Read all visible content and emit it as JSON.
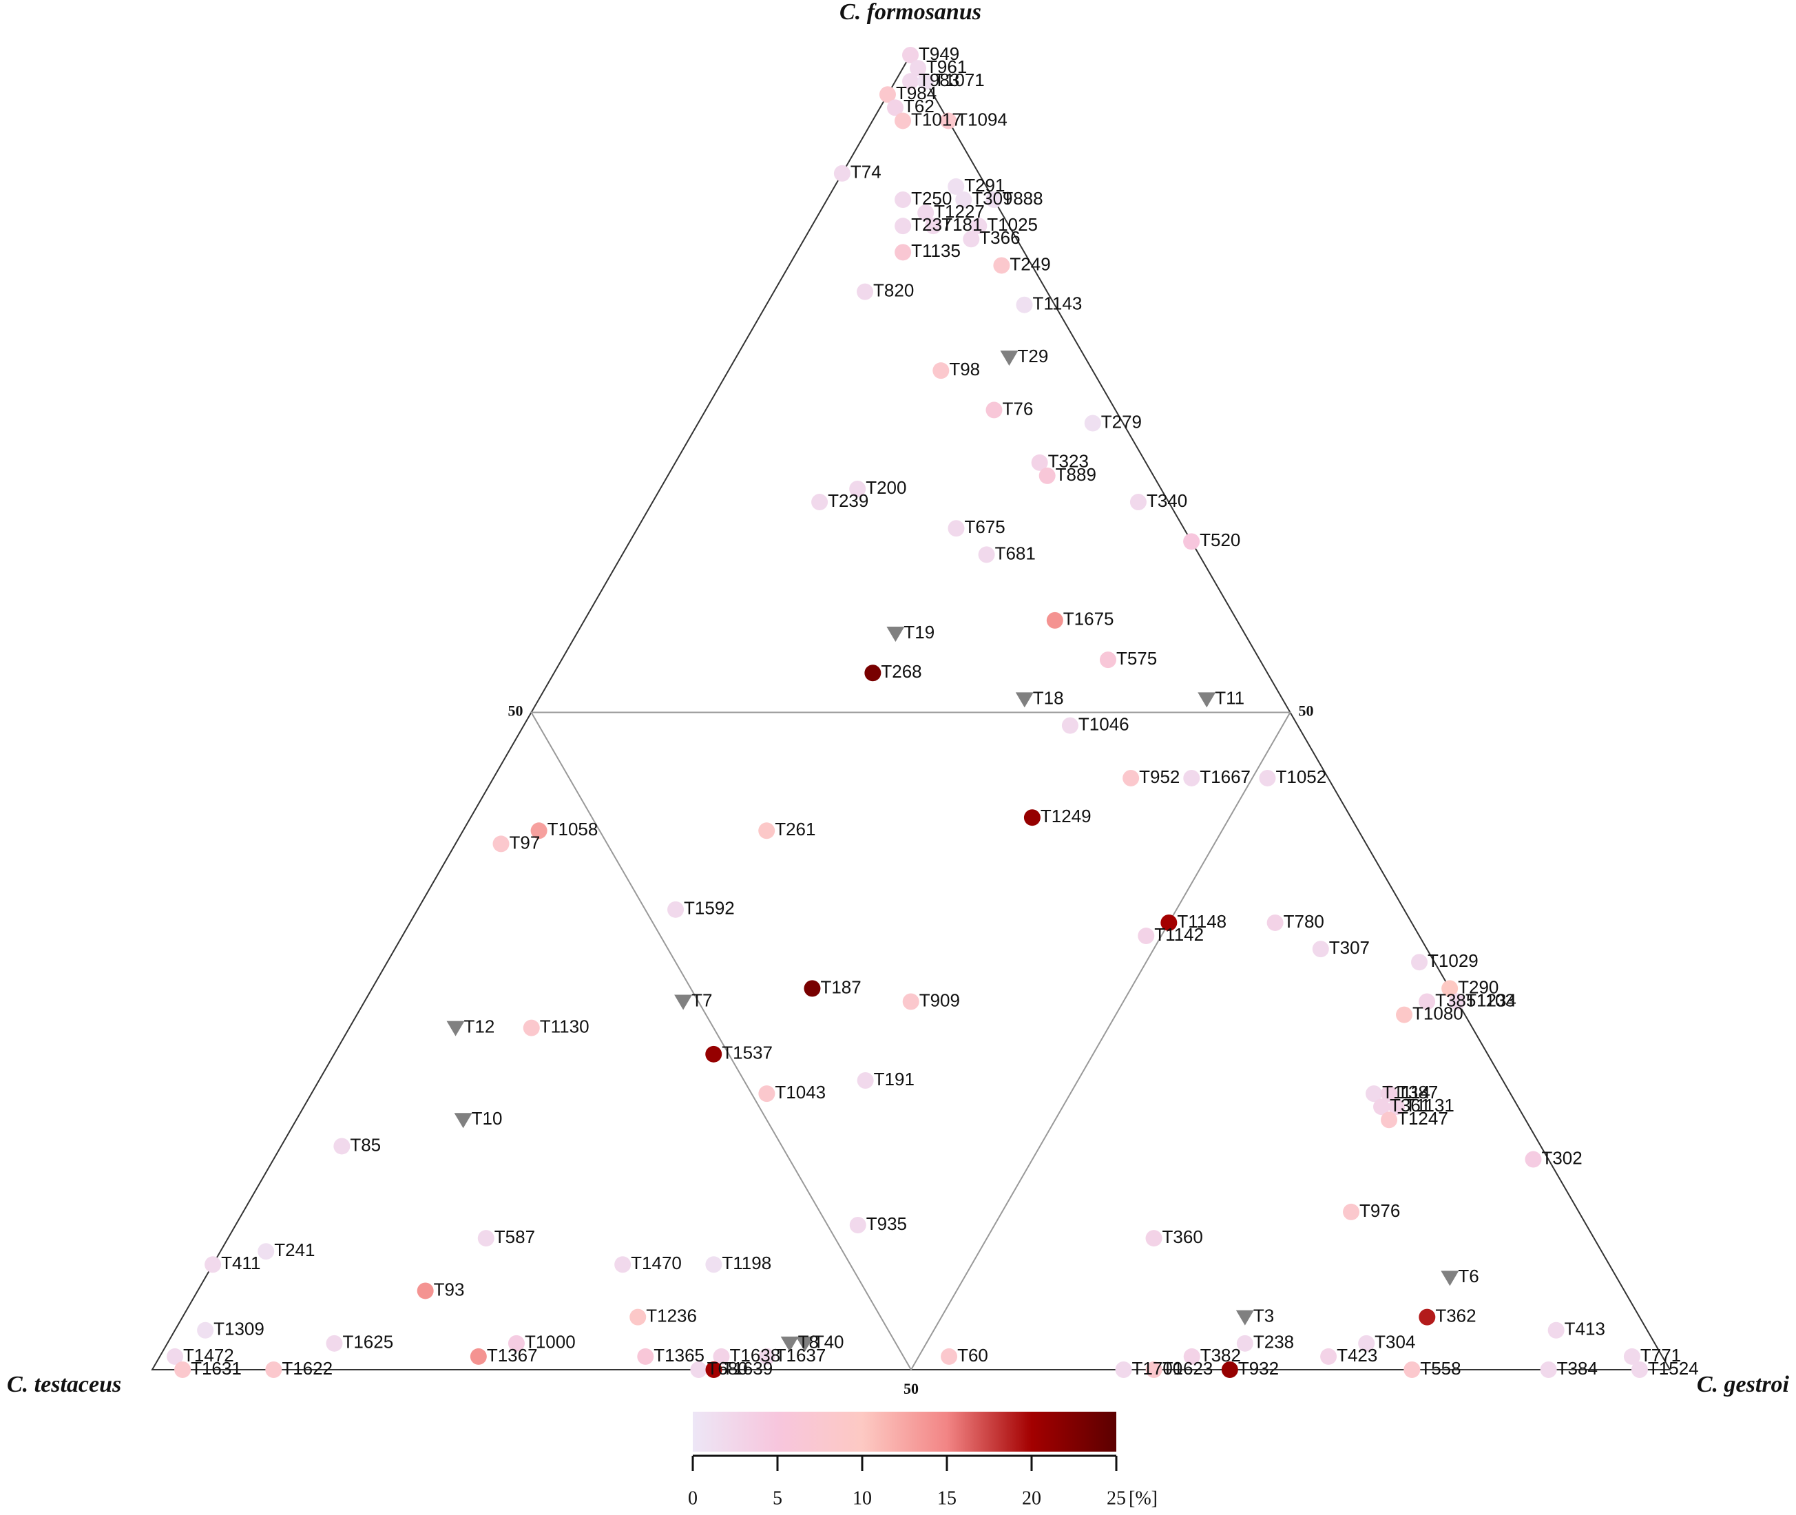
{
  "chart_data": {
    "type": "ternary",
    "axes": [
      "C. formosanus",
      "C. testaceus",
      "C. gestroi"
    ],
    "ticks": [
      50
    ],
    "colorbar": {
      "lim": [
        0,
        25
      ],
      "ticks": [
        0,
        5,
        10,
        15,
        20,
        25
      ],
      "unit": "[%]",
      "colors": [
        "#ede6f6",
        "#f7c6dd",
        "#fdc9c3",
        "#f28585",
        "#a30000",
        "#5c0000"
      ]
    },
    "missing_color": "#808080",
    "points": {
      "labels": [
        "T949",
        "T961",
        "T983",
        "T1071",
        "T984",
        "T62",
        "T1017",
        "T1094",
        "T74",
        "T250",
        "T309",
        "T291",
        "T888",
        "T1227",
        "T1025",
        "T237",
        "T181",
        "T366",
        "T1135",
        "T249",
        "T820",
        "T1143",
        "T29",
        "T98",
        "T76",
        "T279",
        "T323",
        "T889",
        "T200",
        "T239",
        "T340",
        "T520",
        "T675",
        "T681",
        "T1675",
        "T19",
        "T575",
        "T268",
        "T18",
        "T11",
        "T1046",
        "T952",
        "T1667",
        "T1052",
        "T1249",
        "T97",
        "T1058",
        "T261",
        "T1592",
        "T1142",
        "T1148",
        "T780",
        "T307",
        "T1029",
        "T290",
        "T385",
        "T1234",
        "T1080",
        "T1103",
        "T187",
        "T909",
        "T7",
        "T12",
        "T1130",
        "T1537",
        "T1043",
        "T191",
        "T1114",
        "T387",
        "T361",
        "T1131",
        "T1247",
        "T10",
        "T85",
        "T302",
        "T976",
        "T935",
        "T360",
        "T241",
        "T587",
        "T411",
        "T1470",
        "T1198",
        "T6",
        "T93",
        "T362",
        "T1236",
        "T3",
        "T413",
        "T1309",
        "T238",
        "T1472",
        "T1000",
        "T1625",
        "T1622",
        "T1631",
        "T1367",
        "T1365",
        "T1638",
        "T8",
        "T40",
        "T680",
        "T1639",
        "T1637",
        "T60",
        "T1700",
        "T1623",
        "T382",
        "T932",
        "T304",
        "T423",
        "T558",
        "T384",
        "T771",
        "T1524"
      ],
      "formosanus": [
        100,
        99,
        98,
        98,
        97,
        96,
        95,
        95,
        91,
        89,
        89,
        90,
        89,
        88,
        87,
        87,
        87,
        86,
        85,
        84,
        82,
        81,
        77,
        76,
        73,
        72,
        69,
        68,
        67,
        66,
        66,
        63,
        64,
        62,
        57,
        56,
        54,
        53,
        51,
        51,
        49,
        45,
        45,
        45,
        42,
        40,
        41,
        41,
        35,
        33,
        34,
        34,
        32,
        31,
        29,
        28,
        28,
        27,
        28,
        29,
        28,
        28,
        26,
        26,
        24,
        21,
        22,
        21,
        21,
        20,
        20,
        19,
        19,
        17,
        16,
        12,
        11,
        10,
        9,
        10,
        8,
        8,
        8,
        7,
        6,
        4,
        4,
        4,
        3,
        3,
        2,
        1,
        2,
        2,
        0,
        0,
        1,
        1,
        1,
        2,
        2,
        0,
        0,
        1,
        1,
        0,
        0,
        1,
        0,
        2,
        1,
        0,
        0,
        1,
        0
      ],
      "testaceus": [
        0,
        0,
        1,
        0,
        3,
        3,
        3,
        0,
        9,
        6,
        2,
        2,
        0,
        5,
        2,
        7,
        5,
        3,
        8,
        2,
        12,
        2,
        5,
        10,
        8,
        2,
        7,
        7,
        20,
        23,
        2,
        0,
        15,
        14,
        12,
        23,
        10,
        26,
        17,
        5,
        15,
        13,
        9,
        4,
        21,
        57,
        54,
        39,
        48,
        18,
        16,
        9,
        7,
        1,
        0,
        2,
        0,
        4,
        0,
        42,
        36,
        51,
        67,
        62,
        51,
        49,
        42,
        9,
        8,
        9,
        8,
        9,
        70,
        79,
        1,
        15,
        48,
        29,
        88,
        73,
        92,
        65,
        59,
        11,
        79,
        14,
        66,
        26,
        6,
        95,
        27,
        98,
        75,
        87,
        92,
        98,
        78,
        67,
        62,
        57,
        56,
        64,
        63,
        59,
        47,
        36,
        34,
        31,
        29,
        19,
        22,
        17,
        8,
        2,
        2
      ],
      "gestroi": [
        0,
        1,
        1,
        2,
        0,
        1,
        2,
        5,
        0,
        5,
        9,
        8,
        11,
        7,
        11,
        6,
        8,
        11,
        7,
        14,
        6,
        17,
        18,
        14,
        19,
        26,
        24,
        25,
        13,
        11,
        32,
        37,
        21,
        24,
        31,
        21,
        36,
        21,
        32,
        44,
        36,
        42,
        46,
        51,
        37,
        3,
        5,
        20,
        17,
        49,
        50,
        57,
        61,
        68,
        71,
        70,
        72,
        69,
        72,
        29,
        36,
        21,
        7,
        12,
        25,
        30,
        36,
        70,
        71,
        71,
        72,
        72,
        11,
        4,
        83,
        73,
        41,
        61,
        3,
        17,
        0,
        27,
        33,
        82,
        15,
        82,
        30,
        70,
        91,
        2,
        71,
        1,
        23,
        11,
        8,
        2,
        21,
        32,
        37,
        41,
        42,
        36,
        37,
        40,
        52,
        64,
        66,
        68,
        71,
        79,
        77,
        83,
        92,
        97,
        98
      ],
      "values": [
        3,
        2,
        2,
        1,
        8,
        3,
        8,
        8,
        2,
        2,
        1,
        1,
        1,
        2,
        2,
        2,
        2,
        2,
        7,
        8,
        2,
        1,
        null,
        8,
        6,
        1,
        3,
        6,
        2,
        2,
        2,
        5,
        2,
        2,
        14,
        null,
        6,
        23,
        null,
        null,
        2,
        8,
        2,
        2,
        21,
        8,
        13,
        9,
        2,
        3,
        20,
        3,
        2,
        2,
        10,
        3,
        3,
        9,
        2,
        23,
        8,
        null,
        null,
        8,
        21,
        8,
        2,
        2,
        3,
        3,
        3,
        8,
        null,
        2,
        4,
        8,
        2,
        3,
        1,
        2,
        2,
        2,
        1,
        null,
        14,
        19,
        9,
        null,
        2,
        1,
        2,
        2,
        4,
        2,
        8,
        8,
        14,
        6,
        3,
        null,
        null,
        2,
        20,
        2,
        8,
        2,
        8,
        3,
        21,
        2,
        3,
        8,
        2,
        2,
        2
      ]
    }
  }
}
